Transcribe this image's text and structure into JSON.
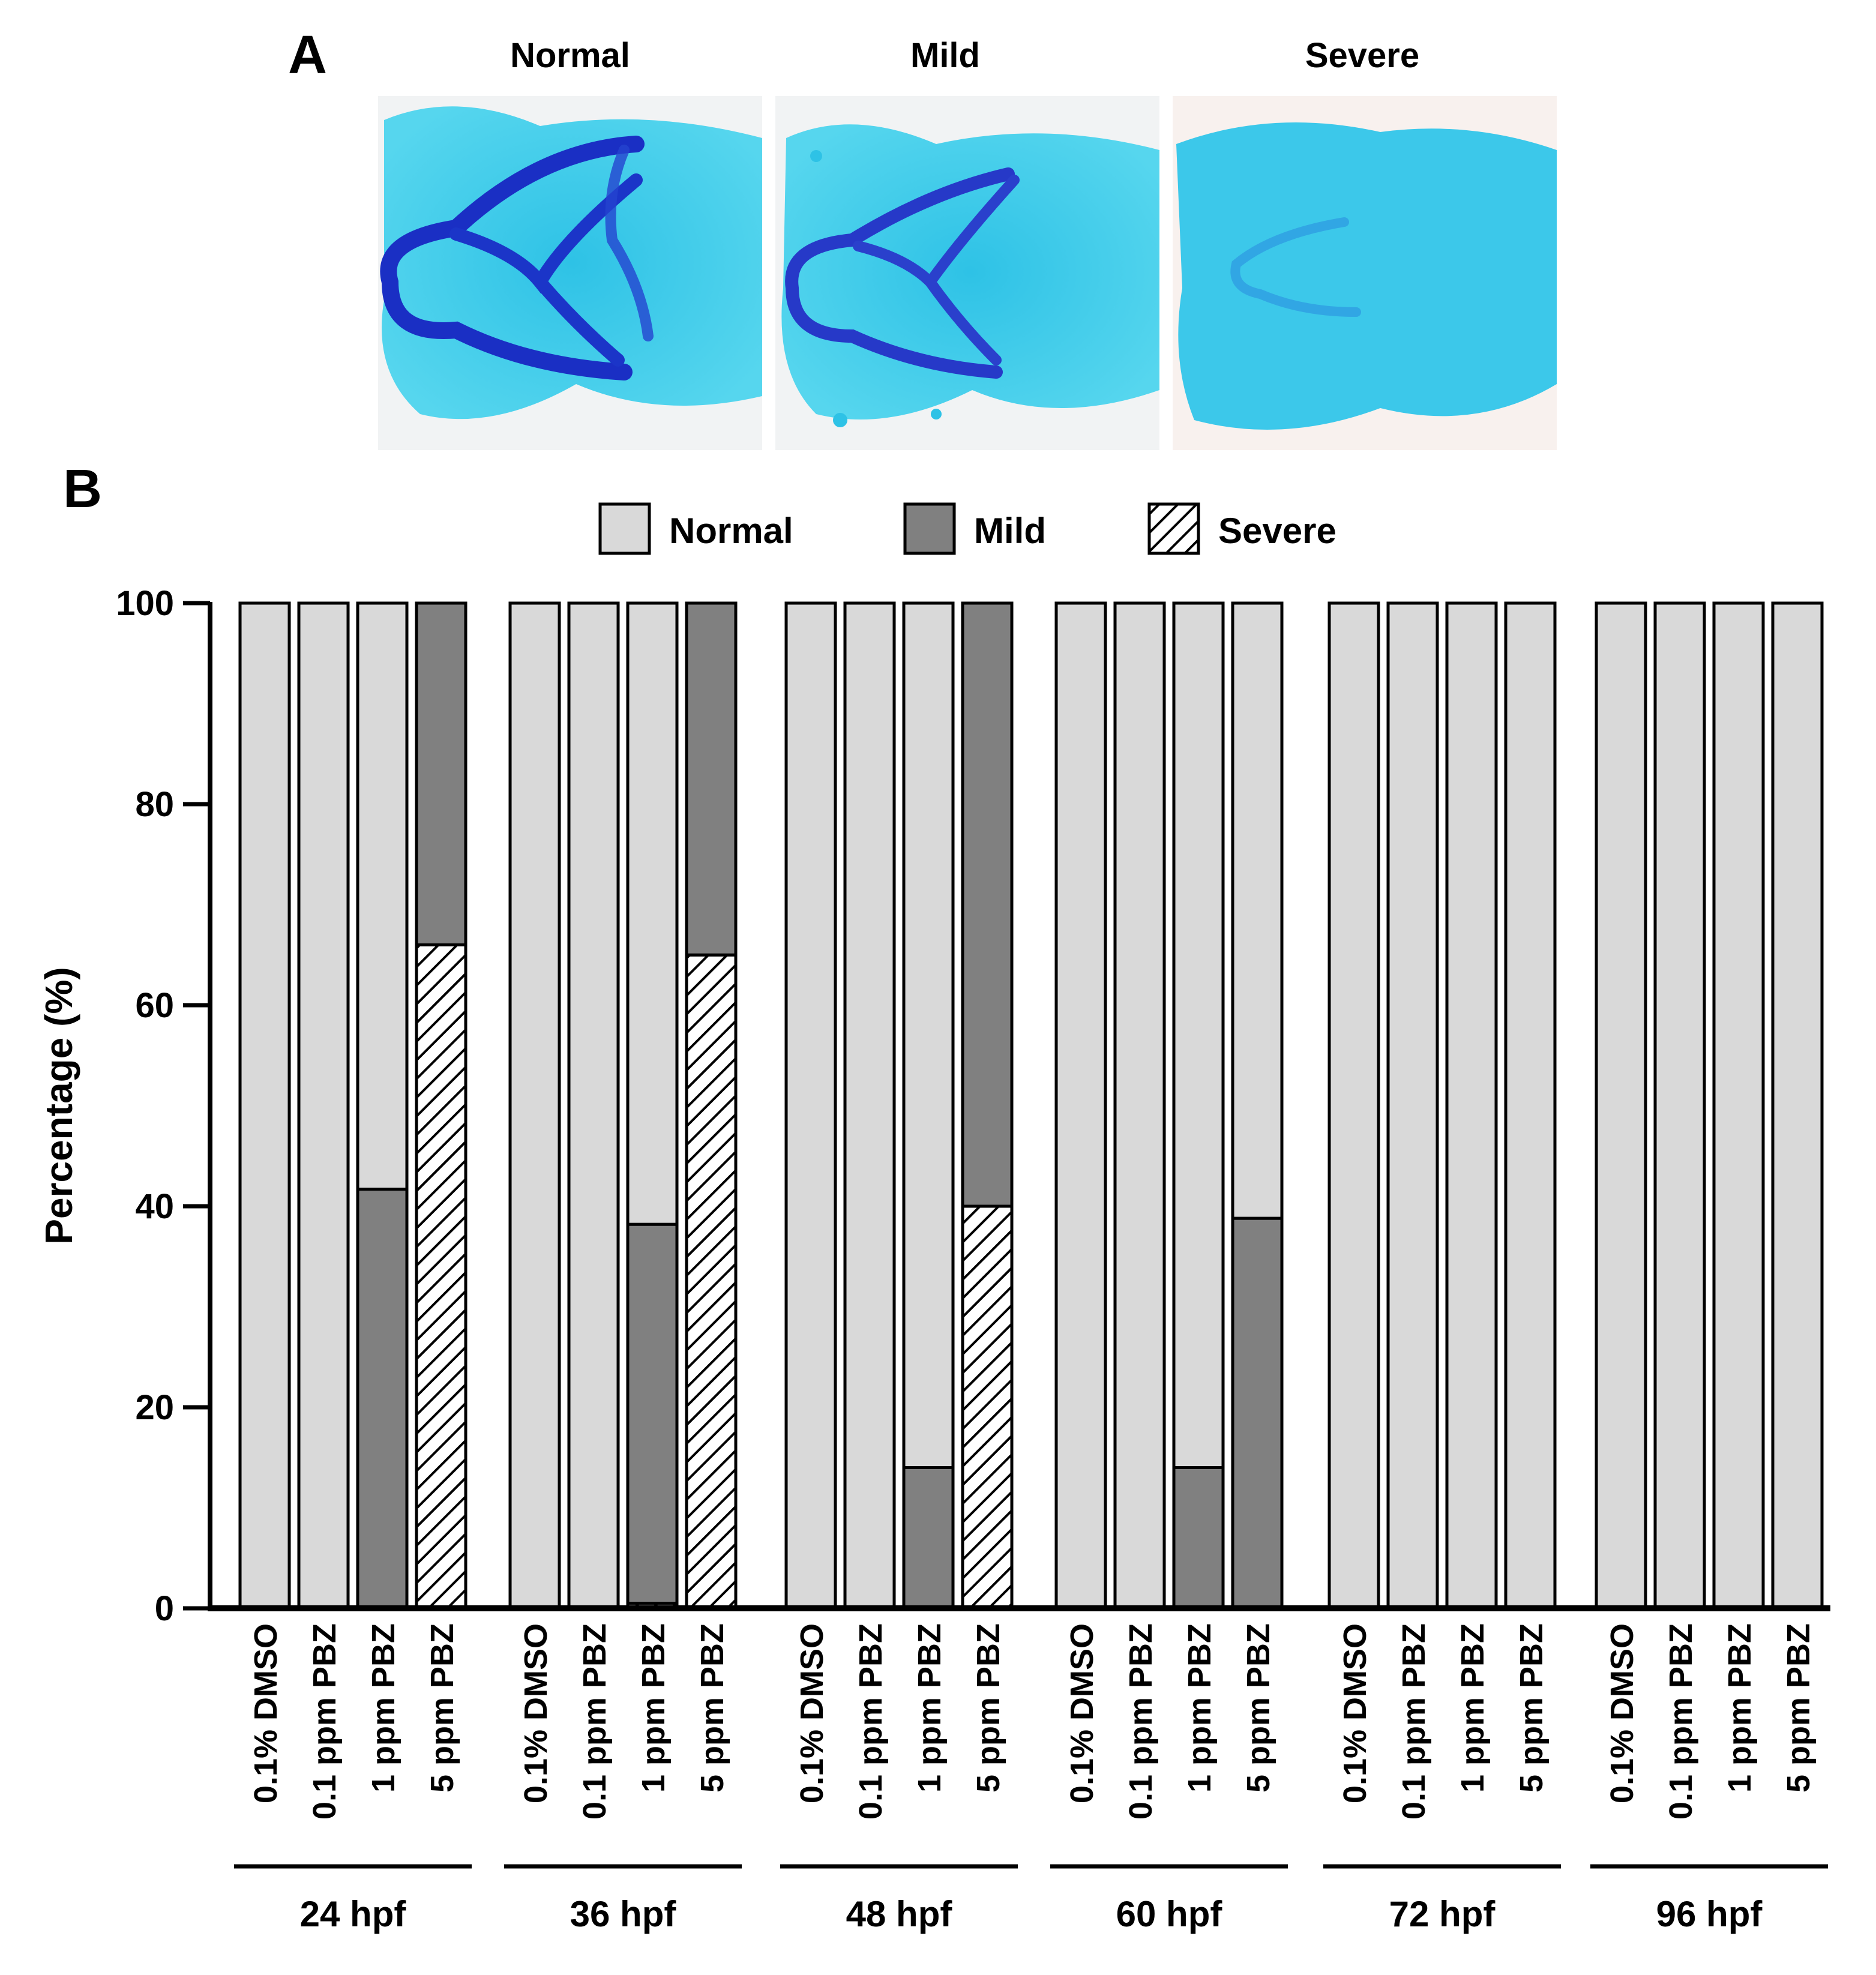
{
  "panel_a": {
    "letter": "A",
    "photos": [
      {
        "title": "Normal",
        "phenotype": "normal"
      },
      {
        "title": "Mild",
        "phenotype": "mild"
      },
      {
        "title": "Severe",
        "phenotype": "severe"
      }
    ],
    "colors": {
      "stain_light": "#33c9e8",
      "stain_dark": "#1a2fc4",
      "background": "#f1f3f4"
    }
  },
  "panel_b": {
    "letter": "B"
  },
  "chart_data": {
    "type": "bar",
    "stacked": true,
    "ylabel": "Percentage (%)",
    "xlabel": "",
    "ylim": [
      0,
      100
    ],
    "yticks": [
      0,
      20,
      40,
      60,
      80,
      100
    ],
    "legend": {
      "placement": "top",
      "entries": [
        {
          "label": "Normal",
          "color": "#d9d9d9",
          "pattern": "solid"
        },
        {
          "label": "Mild",
          "color": "#808080",
          "pattern": "solid"
        },
        {
          "label": "Severe",
          "color": "#ffffff",
          "pattern": "diagonal-hatch"
        }
      ]
    },
    "groups": [
      "24 hpf",
      "36 hpf",
      "48 hpf",
      "60 hpf",
      "72 hpf",
      "96 hpf"
    ],
    "categories": [
      "0.1% DMSO",
      "0.1 ppm PBZ",
      "1 ppm PBZ",
      "5 ppm PBZ"
    ],
    "series": [
      {
        "name": "Severe",
        "values": [
          [
            0,
            0,
            0,
            66
          ],
          [
            0,
            0,
            0.5,
            65
          ],
          [
            0,
            0,
            0,
            40
          ],
          [
            0,
            0,
            0,
            0
          ],
          [
            0,
            0,
            0,
            0
          ],
          [
            0,
            0,
            0,
            0
          ]
        ]
      },
      {
        "name": "Mild",
        "values": [
          [
            0,
            0,
            41.7,
            34
          ],
          [
            0,
            0,
            37.7,
            35
          ],
          [
            0,
            0,
            14,
            60
          ],
          [
            0,
            0,
            14,
            38.8
          ],
          [
            0,
            0,
            0,
            0
          ],
          [
            0,
            0,
            0,
            0
          ]
        ]
      },
      {
        "name": "Normal",
        "values": [
          [
            100,
            100,
            58.3,
            0
          ],
          [
            100,
            100,
            61.8,
            0
          ],
          [
            100,
            100,
            86,
            0
          ],
          [
            100,
            100,
            86,
            61.2
          ],
          [
            100,
            100,
            100,
            100
          ],
          [
            100,
            100,
            100,
            100
          ]
        ]
      }
    ],
    "grid": false
  }
}
